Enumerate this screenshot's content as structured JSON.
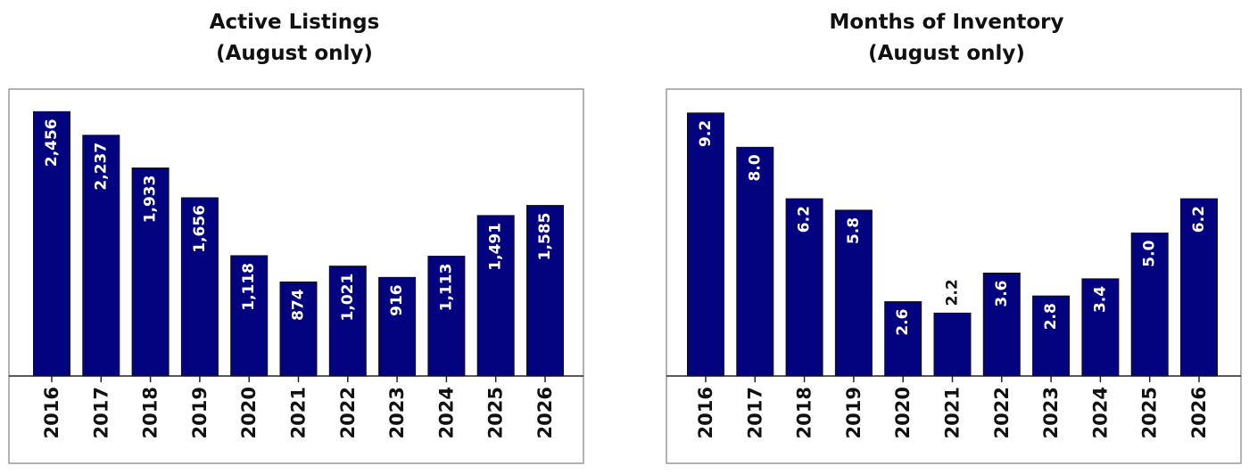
{
  "chart_data": [
    {
      "type": "bar",
      "title_lines": [
        "Active Listings",
        "(August only)"
      ],
      "categories": [
        "2016",
        "2017",
        "2018",
        "2019",
        "2020",
        "2021",
        "2022",
        "2023",
        "2024",
        "2025",
        "2026"
      ],
      "values": [
        2456,
        2237,
        1933,
        1656,
        1118,
        874,
        1021,
        916,
        1113,
        1491,
        1585
      ],
      "value_labels": [
        "2,456",
        "2,237",
        "1,933",
        "1,656",
        "1,118",
        "874",
        "1,021",
        "916",
        "1,113",
        "1,491",
        "1,585"
      ],
      "ylim": [
        0,
        2550
      ],
      "grid": false,
      "color": "#03037f"
    },
    {
      "type": "bar",
      "title_lines": [
        "Months of Inventory",
        "(August only)"
      ],
      "categories": [
        "2016",
        "2017",
        "2018",
        "2019",
        "2020",
        "2021",
        "2022",
        "2023",
        "2024",
        "2025",
        "2026"
      ],
      "values": [
        9.2,
        8.0,
        6.2,
        5.8,
        2.6,
        2.2,
        3.6,
        2.8,
        3.4,
        5.0,
        6.2
      ],
      "value_labels": [
        "9.2",
        "8.0",
        "6.2",
        "5.8",
        "2.6",
        "2.2",
        "3.6",
        "2.8",
        "3.4",
        "5.0",
        "6.2"
      ],
      "ylim": [
        0,
        9.6
      ],
      "grid": false,
      "color": "#03037f"
    }
  ]
}
